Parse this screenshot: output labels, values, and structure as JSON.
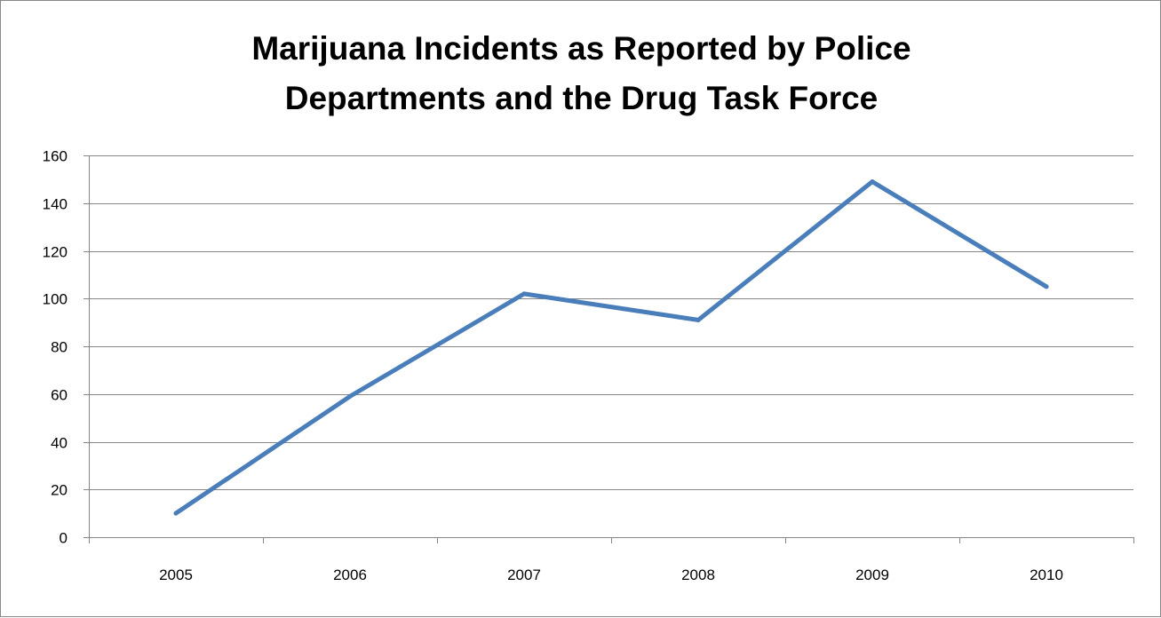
{
  "chart_data": {
    "type": "line",
    "title_lines": [
      "Marijuana Incidents as Reported by Police",
      "Departments and the Drug Task Force"
    ],
    "xlabel": "",
    "ylabel": "",
    "categories": [
      "2005",
      "2006",
      "2007",
      "2008",
      "2009",
      "2010"
    ],
    "series": [
      {
        "values": [
          10,
          59,
          102,
          91,
          149,
          105
        ],
        "color": "#4a7ebb"
      }
    ],
    "ylim": [
      0,
      160
    ],
    "yticks": [
      "0",
      "20",
      "40",
      "60",
      "80",
      "100",
      "120",
      "140",
      "160"
    ],
    "grid": true,
    "gridline_color": "#868686",
    "legend": "none"
  }
}
